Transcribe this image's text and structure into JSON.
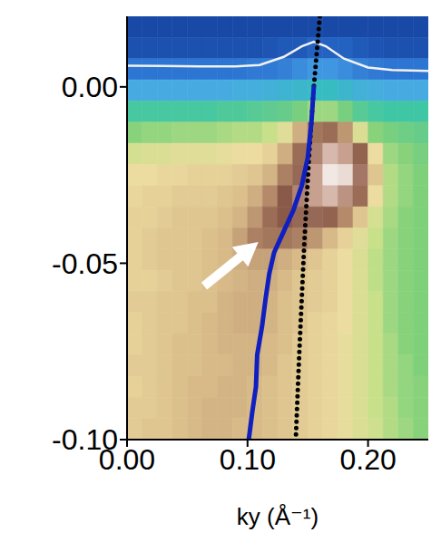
{
  "chart_data": {
    "type": "heatmap",
    "x_label": "ky (Å⁻¹)",
    "xlim": [
      0,
      0.25
    ],
    "ylim": [
      -0.1,
      0.02
    ],
    "xticks": [
      {
        "value": 0,
        "label": "0.00"
      },
      {
        "value": 0.1,
        "label": "0.10"
      },
      {
        "value": 0.2,
        "label": "0.20"
      }
    ],
    "yticks": [
      {
        "value": -0.1,
        "label": "-0.10"
      },
      {
        "value": -0.05,
        "label": "-0.05"
      },
      {
        "value": 0,
        "label": "0.00"
      }
    ],
    "heatmap": {
      "zlim": [
        0,
        100
      ],
      "x_edges": [
        0,
        0.0125,
        0.025,
        0.0375,
        0.05,
        0.0625,
        0.075,
        0.0875,
        0.1,
        0.1125,
        0.125,
        0.1375,
        0.15,
        0.1625,
        0.175,
        0.1875,
        0.2,
        0.2125,
        0.225,
        0.2375,
        0.25
      ],
      "y_edges": [
        0.02,
        0.014,
        0.008,
        0.002,
        -0.004,
        -0.01,
        -0.016,
        -0.022,
        -0.028,
        -0.034,
        -0.04,
        -0.046,
        -0.052,
        -0.058,
        -0.064,
        -0.07,
        -0.076,
        -0.082,
        -0.088,
        -0.094,
        -0.1
      ],
      "values": [
        [
          6,
          6,
          6,
          6,
          6,
          6,
          6,
          6,
          6,
          6,
          6,
          6,
          6,
          6,
          6,
          6,
          6,
          6,
          6,
          6
        ],
        [
          8,
          8,
          8,
          8,
          8,
          8,
          8,
          8,
          8,
          9,
          10,
          10,
          12,
          12,
          12,
          10,
          9,
          8,
          8,
          8
        ],
        [
          16,
          16,
          16,
          16,
          16,
          16,
          16,
          16,
          17,
          17,
          18,
          20,
          22,
          22,
          20,
          18,
          17,
          16,
          16,
          16
        ],
        [
          26,
          26,
          26,
          26,
          26,
          26,
          26,
          27,
          27,
          28,
          29,
          30,
          32,
          32,
          30,
          28,
          27,
          26,
          26,
          26
        ],
        [
          38,
          38,
          38,
          38,
          38,
          38,
          39,
          39,
          40,
          41,
          42,
          44,
          48,
          48,
          44,
          40,
          38,
          37,
          37,
          37
        ],
        [
          46,
          47,
          47,
          48,
          48,
          48,
          49,
          50,
          50,
          52,
          56,
          66,
          76,
          78,
          70,
          55,
          46,
          44,
          43,
          42
        ],
        [
          54,
          55,
          55,
          56,
          56,
          56,
          57,
          58,
          58,
          60,
          66,
          78,
          88,
          94,
          92,
          80,
          58,
          48,
          46,
          44
        ],
        [
          58,
          58,
          59,
          59,
          60,
          60,
          60,
          61,
          62,
          65,
          74,
          84,
          92,
          98,
          97,
          86,
          62,
          50,
          47,
          45
        ],
        [
          59,
          60,
          60,
          61,
          61,
          61,
          62,
          63,
          66,
          72,
          82,
          88,
          92,
          94,
          90,
          78,
          58,
          50,
          47,
          45
        ],
        [
          60,
          60,
          61,
          62,
          62,
          62,
          63,
          65,
          70,
          78,
          82,
          84,
          84,
          80,
          72,
          62,
          54,
          49,
          46,
          45
        ],
        [
          60,
          61,
          62,
          62,
          62,
          63,
          64,
          68,
          74,
          76,
          76,
          74,
          70,
          64,
          60,
          56,
          52,
          48,
          46,
          45
        ],
        [
          60,
          61,
          62,
          62,
          62,
          63,
          64,
          66,
          68,
          68,
          66,
          64,
          62,
          60,
          58,
          55,
          51,
          48,
          46,
          45
        ],
        [
          60,
          60,
          61,
          62,
          62,
          63,
          64,
          65,
          66,
          66,
          64,
          62,
          61,
          60,
          58,
          55,
          51,
          48,
          46,
          45
        ],
        [
          61,
          61,
          62,
          62,
          63,
          63,
          65,
          66,
          66,
          65,
          63,
          62,
          61,
          60,
          58,
          55,
          52,
          48,
          46,
          45
        ],
        [
          60,
          61,
          62,
          62,
          63,
          64,
          65,
          66,
          66,
          65,
          63,
          62,
          60,
          59,
          58,
          55,
          52,
          48,
          46,
          45
        ],
        [
          60,
          61,
          62,
          63,
          63,
          64,
          65,
          65,
          65,
          64,
          63,
          61,
          60,
          59,
          57,
          55,
          52,
          49,
          46,
          45
        ],
        [
          61,
          61,
          62,
          63,
          63,
          64,
          64,
          65,
          65,
          64,
          62,
          61,
          60,
          59,
          57,
          55,
          52,
          49,
          47,
          45
        ],
        [
          60,
          61,
          62,
          63,
          64,
          64,
          65,
          65,
          64,
          63,
          62,
          61,
          60,
          59,
          57,
          55,
          52,
          49,
          47,
          46
        ],
        [
          61,
          61,
          62,
          63,
          64,
          65,
          65,
          65,
          64,
          63,
          62,
          61,
          60,
          59,
          57,
          55,
          52,
          50,
          47,
          46
        ],
        [
          61,
          62,
          62,
          63,
          64,
          65,
          65,
          64,
          64,
          63,
          62,
          61,
          60,
          59,
          57,
          55,
          53,
          50,
          48,
          46
        ]
      ]
    },
    "series": [
      {
        "type": "line",
        "color": "#f2f2f2",
        "line_style": "solid",
        "x": [
          0,
          0.03,
          0.06,
          0.09,
          0.11,
          0.13,
          0.145,
          0.155,
          0.165,
          0.18,
          0.2,
          0.22,
          0.25
        ],
        "values": [
          0.006,
          0.0059,
          0.0058,
          0.0058,
          0.0062,
          0.0085,
          0.0115,
          0.0128,
          0.0115,
          0.008,
          0.0055,
          0.0048,
          0.0045
        ]
      },
      {
        "type": "line",
        "color": "#000000",
        "line_style": "dotted",
        "x": [
          0.16,
          0.155,
          0.151,
          0.147,
          0.143,
          0.14
        ],
        "values": [
          0.02,
          0.0,
          -0.02,
          -0.045,
          -0.075,
          -0.1
        ]
      },
      {
        "type": "line",
        "color": "#1020c0",
        "line_style": "solid",
        "x": [
          0.155,
          0.153,
          0.15,
          0.145,
          0.138,
          0.13,
          0.122,
          0.118,
          0.115,
          0.112,
          0.108,
          0.107,
          0.104,
          0.101
        ],
        "values": [
          0.0,
          -0.01,
          -0.02,
          -0.028,
          -0.035,
          -0.041,
          -0.047,
          -0.053,
          -0.06,
          -0.068,
          -0.076,
          -0.085,
          -0.092,
          -0.1
        ]
      }
    ],
    "arrow": {
      "x": [
        0.064,
        0.109
      ],
      "y": [
        -0.0565,
        -0.044
      ]
    }
  }
}
